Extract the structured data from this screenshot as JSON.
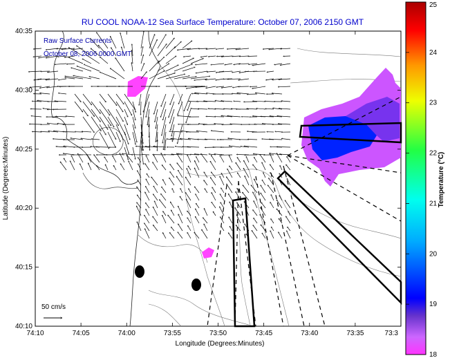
{
  "chart_data": {
    "type": "map-vector-field",
    "title": "RU COOL  NOAA-12  Sea Surface Temperature:  October 07, 2006 2150 GMT",
    "subtitle_lines": [
      "Raw Surface Currents",
      "October 08, 2006 0000 GMT"
    ],
    "xlabel": "Longitude (Degrees:Minutes)",
    "ylabel": "Latitude (Degrees:Minutes)",
    "xticks": [
      "74:10",
      "74:05",
      "74:00",
      "73:55",
      "73:50",
      "73:45",
      "73:40",
      "73:35",
      "73:3"
    ],
    "yticks": [
      "40:10",
      "40:15",
      "40:20",
      "40:25",
      "40:30",
      "40:35"
    ],
    "xlim_deg": [
      -74.1667,
      -73.5
    ],
    "ylim_deg": [
      40.1667,
      40.5833
    ],
    "colorbar": {
      "label": "Temperature (°C)",
      "range": [
        18,
        25
      ],
      "ticks": [
        "18",
        "19",
        "20",
        "21",
        "22",
        "23",
        "24",
        "25"
      ]
    },
    "scale_label": "50 cm/s",
    "grid": false
  }
}
